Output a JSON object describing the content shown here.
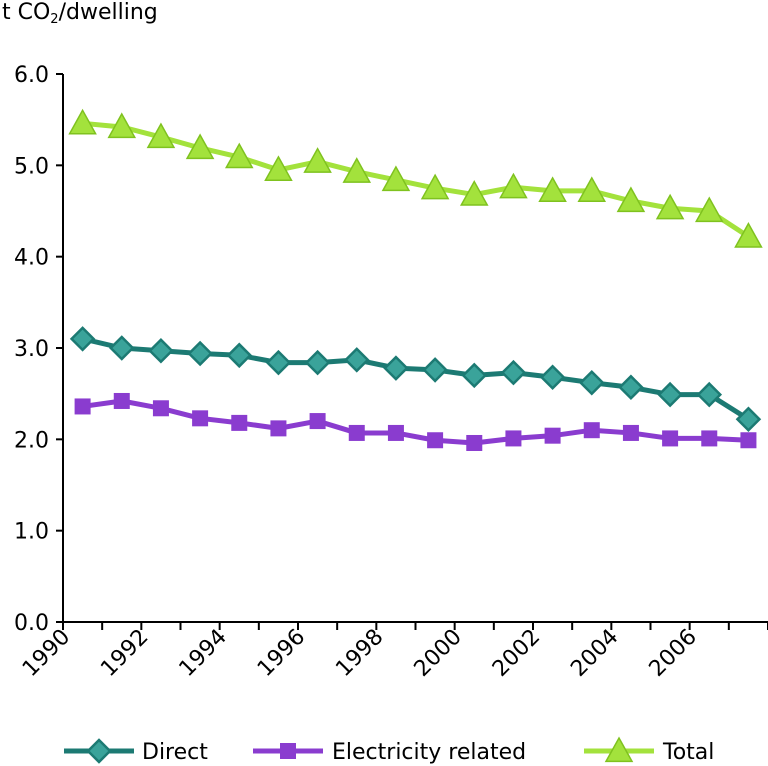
{
  "chart_data": {
    "type": "line",
    "ylabel_prefix": "t CO",
    "ylabel_sub": "2",
    "ylabel_suffix": "/dwelling",
    "ylim": [
      0,
      6
    ],
    "yticks": [
      "0.0",
      "1.0",
      "2.0",
      "3.0",
      "4.0",
      "5.0",
      "6.0"
    ],
    "xticks": [
      "1990",
      "1992",
      "1994",
      "1996",
      "1998",
      "2000",
      "2002",
      "2004",
      "2006"
    ],
    "x": [
      1990,
      1991,
      1992,
      1993,
      1994,
      1995,
      1996,
      1997,
      1998,
      1999,
      2000,
      2001,
      2002,
      2003,
      2004,
      2005,
      2006,
      2007
    ],
    "grid": false,
    "legend_position": "bottom",
    "series": [
      {
        "name": "Direct",
        "color": "#1c7a73",
        "marker": "diamond",
        "values": [
          3.1,
          3.0,
          2.97,
          2.94,
          2.92,
          2.84,
          2.84,
          2.87,
          2.78,
          2.76,
          2.7,
          2.73,
          2.68,
          2.62,
          2.57,
          2.49,
          2.49,
          2.22
        ]
      },
      {
        "name": "Electricity related",
        "color": "#8a3ccf",
        "marker": "square",
        "values": [
          2.36,
          2.42,
          2.34,
          2.23,
          2.18,
          2.12,
          2.2,
          2.07,
          2.07,
          1.99,
          1.96,
          2.01,
          2.04,
          2.1,
          2.07,
          2.01,
          2.01,
          1.99
        ]
      },
      {
        "name": "Total",
        "color": "#a3e23c",
        "marker": "triangle",
        "values": [
          5.46,
          5.42,
          5.31,
          5.19,
          5.09,
          4.95,
          5.04,
          4.93,
          4.84,
          4.75,
          4.68,
          4.76,
          4.72,
          4.72,
          4.61,
          4.53,
          4.5,
          4.22
        ]
      }
    ]
  }
}
